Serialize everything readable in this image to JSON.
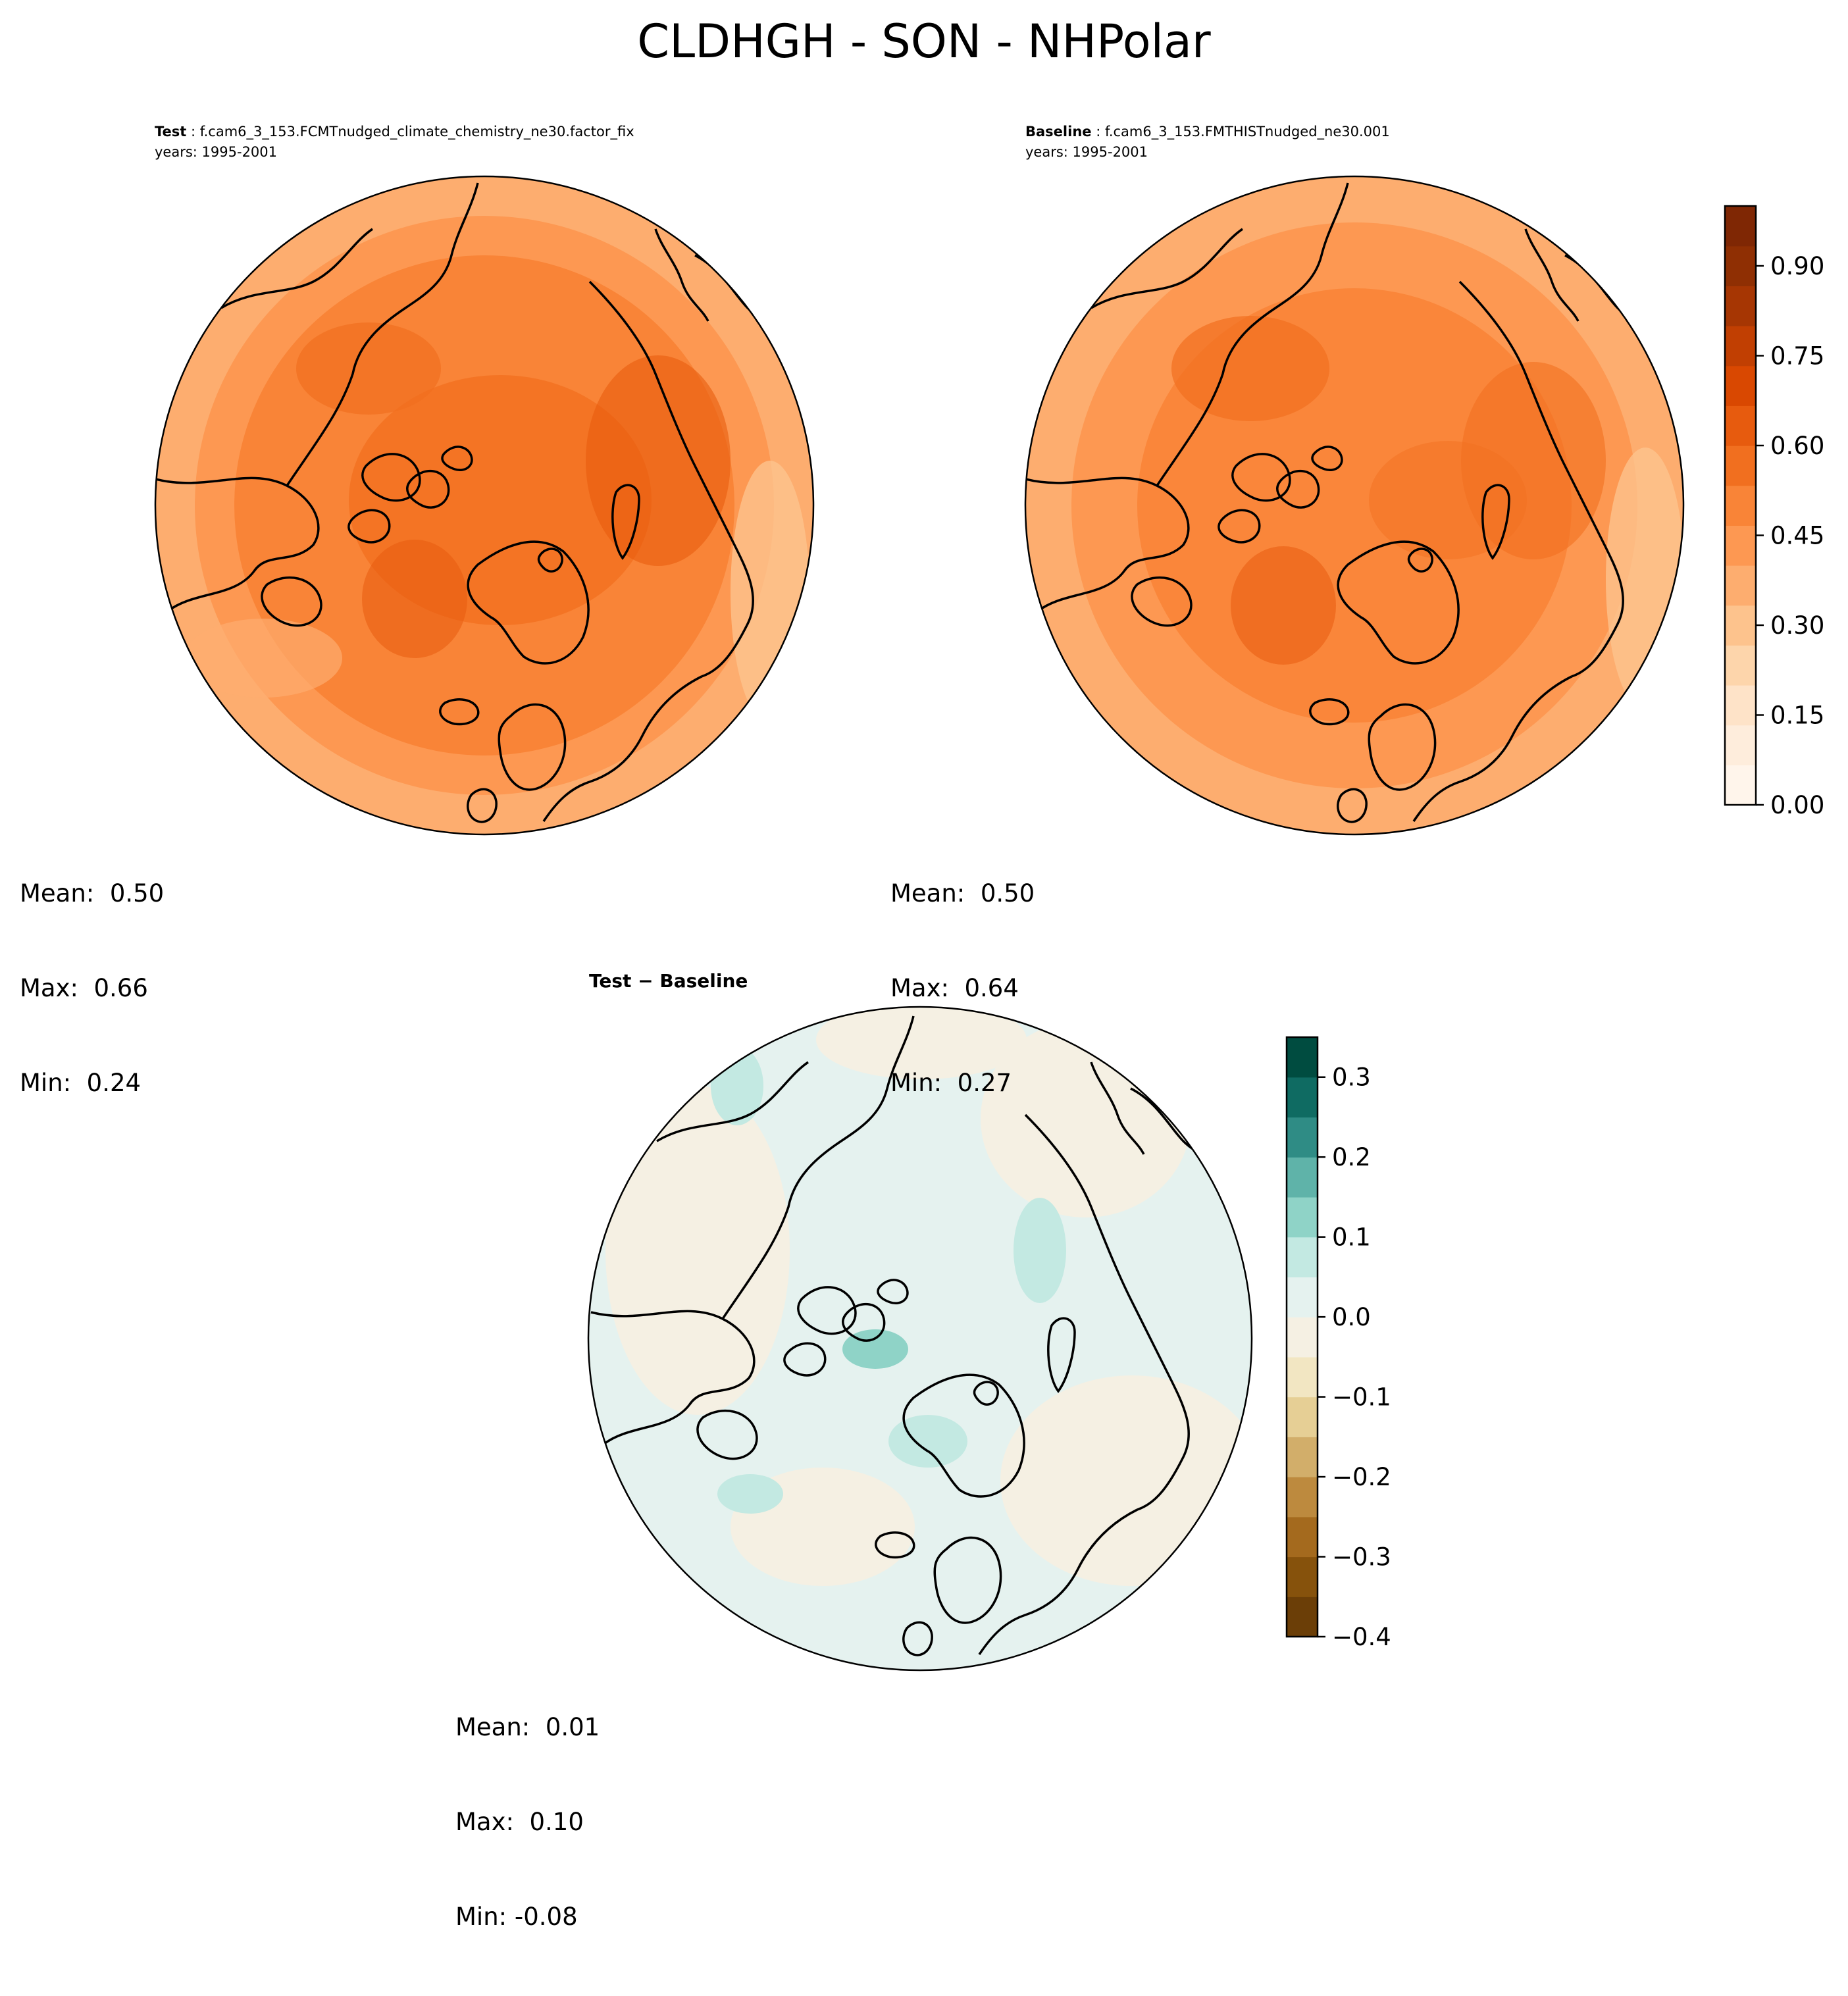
{
  "title": "CLDHGH - SON - NHPolar",
  "panels": [
    {
      "role": "test",
      "label_bold": "Test",
      "case_name": "f.cam6_3_153.FCMTnudged_climate_chemistry_ne30.factor_fix",
      "years": "years: 1995-2001",
      "stats": {
        "mean_label": "Mean:",
        "mean": "0.50",
        "max_label": "Max:",
        "max": "0.66",
        "min_label": "Min:",
        "min": "0.24"
      }
    },
    {
      "role": "baseline",
      "label_bold": "Baseline",
      "case_name": "f.cam6_3_153.FMTHISTnudged_ne30.001",
      "years": "years: 1995-2001",
      "stats": {
        "mean_label": "Mean:",
        "mean": "0.50",
        "max_label": "Max:",
        "max": "0.64",
        "min_label": "Min:",
        "min": "0.27"
      }
    },
    {
      "role": "difference",
      "title": "Test − Baseline",
      "stats": {
        "mean_label": "Mean:",
        "mean": "0.01",
        "max_label": "Max:",
        "max": "0.10",
        "min_label": "Min:",
        "min": "-0.08"
      }
    }
  ],
  "colorbar_main": {
    "colormap": "Oranges",
    "range": [
      0.0,
      1.0
    ],
    "ticks": [
      "0.00",
      "0.15",
      "0.30",
      "0.45",
      "0.60",
      "0.75",
      "0.90"
    ],
    "tick_values": [
      0.0,
      0.15,
      0.3,
      0.45,
      0.6,
      0.75,
      0.9
    ],
    "colors": [
      "#fff5eb",
      "#feeddc",
      "#fee3c8",
      "#fdd5ab",
      "#fdc38d",
      "#fdad6f",
      "#fd9852",
      "#f98437",
      "#f16f1f",
      "#e75b0e",
      "#d94801",
      "#c13f02",
      "#a63603",
      "#8f2f03",
      "#7f2704"
    ]
  },
  "colorbar_diff": {
    "colormap": "BrBG",
    "range": [
      -0.4,
      0.35
    ],
    "ticks": [
      "0.3",
      "0.2",
      "0.1",
      "0.0",
      "−0.1",
      "−0.2",
      "−0.3",
      "−0.4"
    ],
    "tick_values": [
      0.3,
      0.2,
      0.1,
      0.0,
      -0.1,
      -0.2,
      -0.3,
      -0.4
    ],
    "colors": [
      "#6b3e07",
      "#86520c",
      "#a46a1e",
      "#bd8a3e",
      "#d2ae6a",
      "#e6cf95",
      "#f2e6c2",
      "#f5f0e3",
      "#e5f2ef",
      "#c3e9e2",
      "#8fd3c7",
      "#5fb3a9",
      "#2f8c85",
      "#0f6b62",
      "#004c40"
    ]
  },
  "map_colors": {
    "test_base": "#f58a3c",
    "baseline_base": "#f99c55",
    "diff_base": "#e6f2ee",
    "diff_warm": "#f5f0e3",
    "coastline": "#000000"
  }
}
